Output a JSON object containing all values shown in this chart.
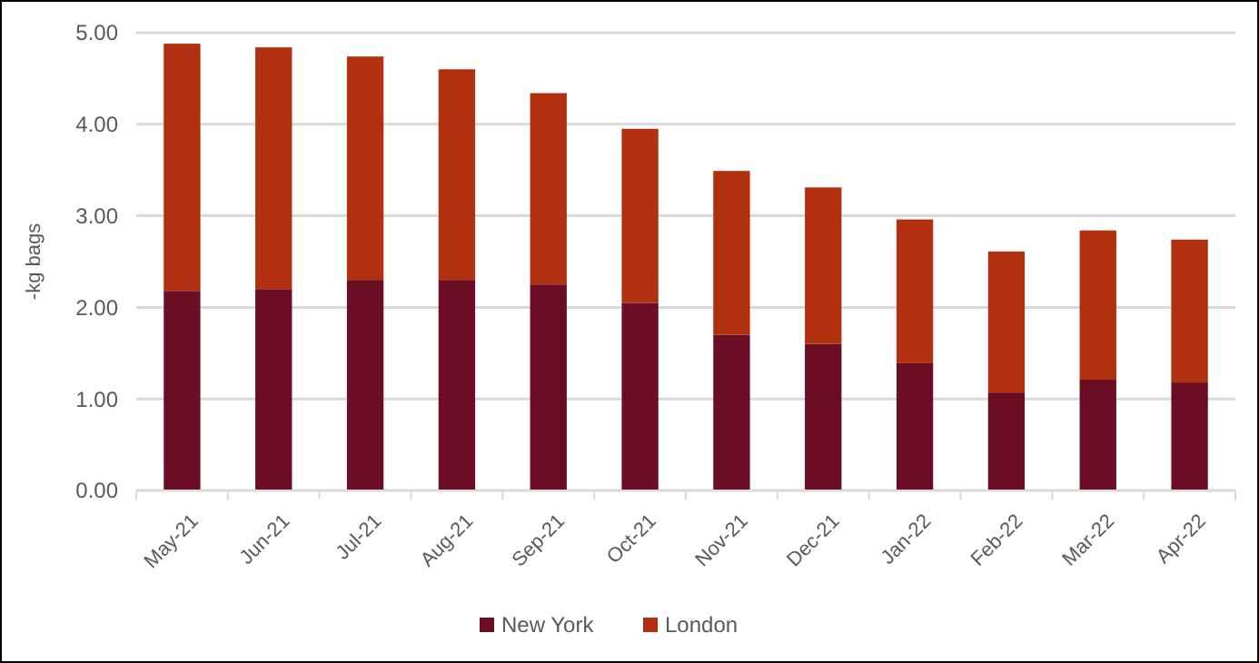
{
  "chart_data": {
    "type": "bar",
    "stacked": true,
    "ylabel": "-kg bags",
    "categories": [
      "May-21",
      "Jun-21",
      "Jul-21",
      "Aug-21",
      "Sep-21",
      "Oct-21",
      "Nov-21",
      "Dec-21",
      "Jan-22",
      "Feb-22",
      "Mar-22",
      "Apr-22"
    ],
    "series": [
      {
        "name": "New York",
        "color": "#6b0d24",
        "values": [
          2.18,
          2.2,
          2.3,
          2.3,
          2.25,
          2.05,
          1.7,
          1.6,
          1.39,
          1.07,
          1.21,
          1.18
        ]
      },
      {
        "name": "London",
        "color": "#b0300f",
        "values": [
          2.7,
          2.64,
          2.44,
          2.3,
          2.09,
          1.9,
          1.79,
          1.71,
          1.57,
          1.54,
          1.63,
          1.56
        ]
      }
    ],
    "ylim": [
      0,
      5
    ],
    "yticks": [
      {
        "value": 0,
        "label": "0.00"
      },
      {
        "value": 1,
        "label": "1.00"
      },
      {
        "value": 2,
        "label": "2.00"
      },
      {
        "value": 3,
        "label": "3.00"
      },
      {
        "value": 4,
        "label": "4.00"
      },
      {
        "value": 5,
        "label": "5.00"
      }
    ],
    "grid": true,
    "legend": "bottom"
  }
}
